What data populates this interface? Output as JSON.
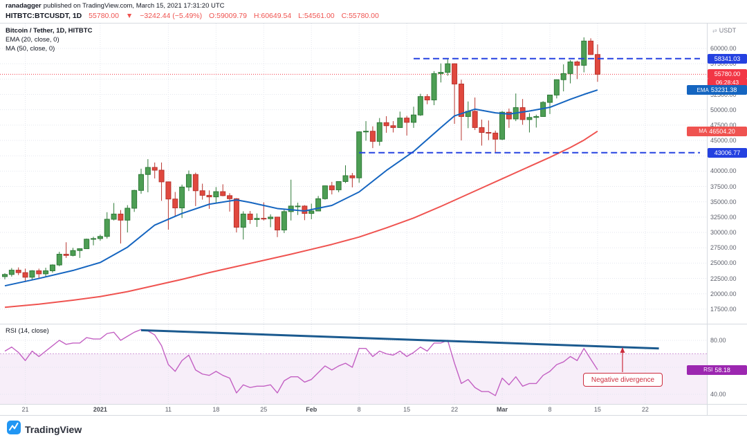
{
  "header": {
    "author": "ranadagger",
    "published_text": "published on TradingView.com, March 15, 2021 17:31:20 UTC",
    "symbol_line": {
      "symbol": "HITBTC:BTCUSDT, 1D",
      "last": "55780.00",
      "arrow": "▼",
      "change": "−3242.44 (−5.49%)",
      "o": "O:59009.79",
      "h": "H:60649.54",
      "l": "L:54561.00",
      "c": "C:55780.00"
    }
  },
  "legend": {
    "title": "Bitcoin / Tether, 1D, HITBTC",
    "ema": "EMA (20, close, 0)",
    "ma": "MA (50, close, 0)"
  },
  "rsi_panel": {
    "label": "RSI (14, close)"
  },
  "callout": {
    "text": "Negative divergence"
  },
  "footer": {
    "brand": "TradingView"
  },
  "axis": {
    "currency_label": "USDT",
    "price_ticks": [
      "60000.00",
      "57500.00",
      "55000.00",
      "52500.00",
      "50000.00",
      "47500.00",
      "45000.00",
      "42500.00",
      "40000.00",
      "37500.00",
      "35000.00",
      "32500.00",
      "30000.00",
      "27500.00",
      "25000.00",
      "22500.00",
      "20000.00",
      "17500.00"
    ],
    "rsi_ticks": [
      "80.00",
      "40.00"
    ],
    "x_ticks": [
      {
        "index": 3,
        "label": "21",
        "bold": false
      },
      {
        "index": 14,
        "label": "2021",
        "bold": true
      },
      {
        "index": 24,
        "label": "11",
        "bold": false
      },
      {
        "index": 31,
        "label": "18",
        "bold": false
      },
      {
        "index": 38,
        "label": "25",
        "bold": false
      },
      {
        "index": 45,
        "label": "Feb",
        "bold": true
      },
      {
        "index": 52,
        "label": "8",
        "bold": false
      },
      {
        "index": 59,
        "label": "15",
        "bold": false
      },
      {
        "index": 66,
        "label": "22",
        "bold": false
      },
      {
        "index": 73,
        "label": "Mar",
        "bold": true
      },
      {
        "index": 80,
        "label": "8",
        "bold": false
      },
      {
        "index": 87,
        "label": "15",
        "bold": false
      },
      {
        "index": 94,
        "label": "22",
        "bold": false
      }
    ]
  },
  "badges": [
    {
      "prefix": "",
      "value": "58341.03",
      "type": "level"
    },
    {
      "prefix": "",
      "value": "55780.00",
      "type": "last"
    },
    {
      "prefix": "",
      "value": "06:28:43",
      "type": "countdown"
    },
    {
      "prefix": "EMA",
      "value": "53231.38",
      "type": "ema"
    },
    {
      "prefix": "MA",
      "value": "46504.20",
      "type": "ma"
    },
    {
      "prefix": "",
      "value": "43006.77",
      "type": "level"
    },
    {
      "prefix": "RSI",
      "value": "58.18",
      "type": "rsi"
    }
  ],
  "colors": {
    "up": "#4d9e54",
    "up_stroke": "#2f7a38",
    "down": "#e0483e",
    "down_stroke": "#b8352f",
    "ema": "#1565c0",
    "ma": "#ef5350",
    "level": "#2441e0",
    "last": "#f23645",
    "rsi": "#c360c3",
    "rsi_band_fill": "rgba(156,39,176,0.08)",
    "rsi_band_line": "rgba(156,39,176,0.45)",
    "trendline": "#1b5a8f",
    "callout": "#cc2b3d",
    "grid": "#e3e6ee",
    "border": "#d6dae0",
    "badge_level": "#2441e0",
    "badge_last": "#f23645",
    "badge_countdown": "#f23645",
    "badge_ema": "#1565c0",
    "badge_ma": "#ef5350",
    "badge_rsi": "#9c27b0"
  },
  "chart_data": {
    "type": "candlestick",
    "title": "Bitcoin / Tether, 1D, HITBTC",
    "symbol": "HITBTC:BTCUSDT",
    "interval": "1D",
    "price_axis": {
      "min": 17500,
      "max": 60000,
      "step": 2500
    },
    "current_price": 55780.0,
    "levels": [
      {
        "value": 58341.03,
        "start_index": 60
      },
      {
        "value": 43006.77,
        "start_index": 52
      }
    ],
    "candles": [
      [
        22800,
        23350,
        22350,
        23150
      ],
      [
        23150,
        24200,
        22800,
        23850
      ],
      [
        23850,
        24300,
        23050,
        23450
      ],
      [
        23450,
        24100,
        21900,
        22700
      ],
      [
        22700,
        23850,
        22300,
        23750
      ],
      [
        23750,
        24100,
        22600,
        23250
      ],
      [
        23250,
        24250,
        22750,
        23750
      ],
      [
        23750,
        24800,
        23450,
        24700
      ],
      [
        24700,
        26850,
        24500,
        26450
      ],
      [
        26450,
        28400,
        25850,
        26250
      ],
      [
        26250,
        27500,
        26100,
        27050
      ],
      [
        27050,
        27400,
        25850,
        27350
      ],
      [
        27350,
        29000,
        27300,
        28900
      ],
      [
        28900,
        29300,
        27900,
        29000
      ],
      [
        29000,
        29650,
        28650,
        29350
      ],
      [
        29350,
        33300,
        29000,
        32150
      ],
      [
        32150,
        34800,
        31950,
        33000
      ],
      [
        33000,
        33650,
        28200,
        32000
      ],
      [
        32000,
        34450,
        30000,
        33950
      ],
      [
        33950,
        36950,
        33350,
        36850
      ],
      [
        36850,
        40400,
        36300,
        39450
      ],
      [
        39450,
        41950,
        36550,
        40600
      ],
      [
        40600,
        41400,
        38800,
        40150
      ],
      [
        40150,
        41400,
        35150,
        38250
      ],
      [
        38250,
        38300,
        30450,
        35450
      ],
      [
        35450,
        36600,
        32550,
        34000
      ],
      [
        34000,
        37800,
        32350,
        37400
      ],
      [
        37400,
        40100,
        36750,
        39450
      ],
      [
        39450,
        39750,
        34300,
        36800
      ],
      [
        36800,
        37950,
        35350,
        36050
      ],
      [
        36050,
        36850,
        33850,
        35800
      ],
      [
        35800,
        37400,
        34750,
        36650
      ],
      [
        36650,
        37850,
        35900,
        36000
      ],
      [
        36000,
        36400,
        33400,
        35500
      ],
      [
        35500,
        35600,
        30000,
        30850
      ],
      [
        30850,
        33450,
        28850,
        33000
      ],
      [
        33000,
        33500,
        31400,
        32100
      ],
      [
        32100,
        33100,
        30900,
        32300
      ],
      [
        32300,
        34900,
        31950,
        32250
      ],
      [
        32250,
        32950,
        30850,
        32500
      ],
      [
        32500,
        32550,
        29250,
        30400
      ],
      [
        30400,
        33800,
        29900,
        33400
      ],
      [
        33400,
        38600,
        31950,
        34300
      ],
      [
        34300,
        34850,
        32850,
        34300
      ],
      [
        34300,
        34450,
        32000,
        33100
      ],
      [
        33100,
        34700,
        32150,
        33500
      ],
      [
        33500,
        35950,
        33450,
        35500
      ],
      [
        35500,
        37650,
        35350,
        37600
      ],
      [
        37600,
        38250,
        36200,
        36950
      ],
      [
        36950,
        38300,
        36550,
        38300
      ],
      [
        38300,
        40950,
        38050,
        39250
      ],
      [
        39250,
        39700,
        37350,
        38900
      ],
      [
        38900,
        46500,
        38100,
        46400
      ],
      [
        46400,
        48150,
        44950,
        46500
      ],
      [
        46500,
        47300,
        43750,
        44850
      ],
      [
        44850,
        48650,
        44150,
        47900
      ],
      [
        47900,
        48950,
        46250,
        47400
      ],
      [
        47400,
        48150,
        46300,
        47100
      ],
      [
        47100,
        49700,
        47050,
        48650
      ],
      [
        48650,
        49000,
        45800,
        47950
      ],
      [
        47950,
        50500,
        47050,
        49150
      ],
      [
        49150,
        52600,
        49000,
        52150
      ],
      [
        52150,
        52550,
        50900,
        51600
      ],
      [
        51600,
        56300,
        50750,
        55900
      ],
      [
        55900,
        57550,
        54450,
        56100
      ],
      [
        56100,
        58350,
        55550,
        57500
      ],
      [
        57500,
        57550,
        47700,
        54200
      ],
      [
        54200,
        54900,
        45000,
        48900
      ],
      [
        48900,
        51350,
        47000,
        49750
      ],
      [
        49750,
        52000,
        46700,
        47100
      ],
      [
        47100,
        48400,
        44150,
        46300
      ],
      [
        46300,
        48250,
        45050,
        46200
      ],
      [
        46200,
        46600,
        43000,
        45200
      ],
      [
        45200,
        49800,
        45050,
        49600
      ],
      [
        49600,
        50200,
        47050,
        48500
      ],
      [
        48500,
        52650,
        48150,
        50350
      ],
      [
        50350,
        51750,
        47550,
        48400
      ],
      [
        48400,
        49450,
        46300,
        48750
      ],
      [
        48750,
        49200,
        47100,
        48900
      ],
      [
        48900,
        51400,
        48850,
        51200
      ],
      [
        51200,
        52400,
        49300,
        52400
      ],
      [
        52400,
        54900,
        51850,
        54900
      ],
      [
        54900,
        57400,
        53000,
        55900
      ],
      [
        55900,
        58100,
        54300,
        57800
      ],
      [
        57800,
        58000,
        55000,
        57250
      ],
      [
        57250,
        61800,
        56100,
        61200
      ],
      [
        61200,
        61650,
        58950,
        59000
      ],
      [
        59009.79,
        60649.54,
        54561.0,
        55780.0
      ]
    ],
    "ema20_points": [
      [
        0,
        21300
      ],
      [
        5,
        22500
      ],
      [
        10,
        23800
      ],
      [
        14,
        25100
      ],
      [
        18,
        27600
      ],
      [
        22,
        31200
      ],
      [
        26,
        33100
      ],
      [
        30,
        34600
      ],
      [
        34,
        35300
      ],
      [
        36,
        34900
      ],
      [
        40,
        33900
      ],
      [
        44,
        33500
      ],
      [
        48,
        34400
      ],
      [
        52,
        36600
      ],
      [
        56,
        40100
      ],
      [
        60,
        43200
      ],
      [
        64,
        47100
      ],
      [
        66,
        49000
      ],
      [
        69,
        50100
      ],
      [
        72,
        49500
      ],
      [
        74,
        49300
      ],
      [
        77,
        49800
      ],
      [
        80,
        50400
      ],
      [
        83,
        51700
      ],
      [
        85,
        52500
      ],
      [
        87,
        53231.38
      ]
    ],
    "ma50_points": [
      [
        0,
        17800
      ],
      [
        5,
        18300
      ],
      [
        10,
        18950
      ],
      [
        14,
        19550
      ],
      [
        18,
        20350
      ],
      [
        22,
        21350
      ],
      [
        26,
        22350
      ],
      [
        30,
        23450
      ],
      [
        34,
        24450
      ],
      [
        38,
        25450
      ],
      [
        42,
        26450
      ],
      [
        45,
        27250
      ],
      [
        48,
        28050
      ],
      [
        52,
        29250
      ],
      [
        56,
        30750
      ],
      [
        60,
        32350
      ],
      [
        64,
        34250
      ],
      [
        66,
        35250
      ],
      [
        70,
        37250
      ],
      [
        73,
        38750
      ],
      [
        76,
        40250
      ],
      [
        80,
        42250
      ],
      [
        83,
        43850
      ],
      [
        85,
        45050
      ],
      [
        87,
        46504.2
      ]
    ],
    "indicator_values": {
      "ema20": 53231.38,
      "ma50": 46504.2,
      "rsi14": 58.18
    },
    "rsi_panel": {
      "period": 14,
      "value": 58.18,
      "band": [
        30,
        70
      ],
      "trendline": {
        "from_index": 20,
        "from_rsi": 87.5,
        "to_index": 96,
        "to_rsi": 74
      },
      "values": [
        72,
        75,
        71,
        65,
        72,
        68,
        72,
        76,
        80,
        77,
        78,
        78,
        82,
        81,
        81,
        85,
        86,
        80,
        83,
        86,
        88,
        87,
        84,
        76,
        62,
        57,
        65,
        69,
        58,
        55,
        54,
        57,
        54,
        52,
        41,
        47,
        45,
        46,
        46,
        47,
        41,
        50,
        53,
        53,
        49,
        51,
        56,
        61,
        58,
        61,
        63,
        60,
        74,
        74,
        68,
        72,
        70,
        69,
        72,
        68,
        71,
        75,
        72,
        78,
        78,
        80,
        63,
        48,
        51,
        45,
        42,
        42,
        39,
        52,
        47,
        53,
        46,
        48,
        48,
        54,
        57,
        62,
        64,
        68,
        65,
        74,
        66,
        58.18
      ]
    }
  }
}
